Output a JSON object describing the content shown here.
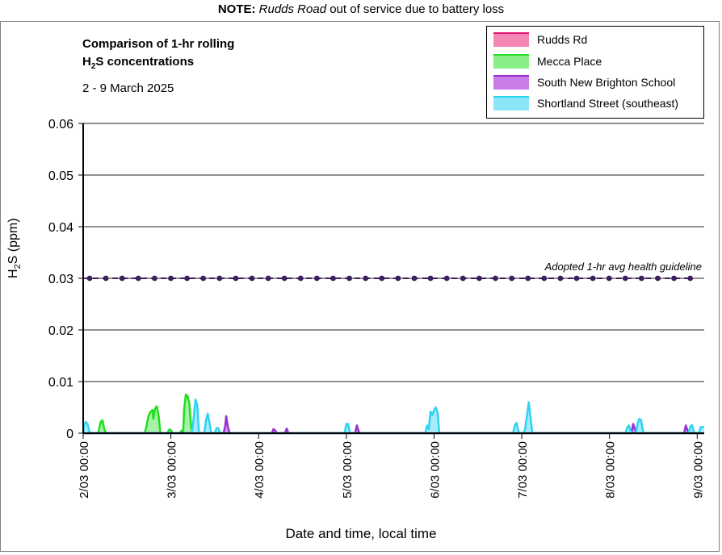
{
  "note": {
    "prefix": "NOTE:",
    "site": "Rudds Road",
    "suffix": "out of service due to battery loss"
  },
  "chart_data": {
    "type": "area",
    "title_line1": "Comparison of 1-hr rolling",
    "title_line2_pre": "H",
    "title_line2_sub": "2",
    "title_line2_post": "S concentrations",
    "subtitle": "2 - 9 March 2025",
    "ylabel_pre": "H",
    "ylabel_sub": "2",
    "ylabel_post": "S (ppm)",
    "xlabel": "Date and time, local time",
    "ylim": [
      0,
      0.06
    ],
    "yticks": [
      "0",
      "0.01",
      "0.02",
      "0.03",
      "0.04",
      "0.05",
      "0.06"
    ],
    "xlim": [
      0,
      7.08
    ],
    "xticks": [
      {
        "value": 0,
        "label": "2/03 00:00"
      },
      {
        "value": 1,
        "label": "3/03 00:00"
      },
      {
        "value": 2,
        "label": "4/03 00:00"
      },
      {
        "value": 3,
        "label": "5/03 00:00"
      },
      {
        "value": 4,
        "label": "6/03 00:00"
      },
      {
        "value": 5,
        "label": "7/03 00:00"
      },
      {
        "value": 6,
        "label": "8/03 00:00"
      },
      {
        "value": 7,
        "label": "9/03 00:00"
      }
    ],
    "x_unit_note": "x values are days since 2/03 00:00",
    "grid": "horizontal",
    "legend_position": "top-right",
    "guideline": {
      "value": 0.03,
      "label": "Adopted 1-hr avg health guideline",
      "color": "#3b1f5e"
    },
    "series": [
      {
        "name": "Rudds Rd",
        "stroke": "#e0156e",
        "fill": "#f487b6",
        "points": [
          [
            0,
            0
          ],
          [
            7.08,
            0
          ]
        ]
      },
      {
        "name": "Mecca Place",
        "stroke": "#22dd22",
        "fill": "#88ef88",
        "points": [
          [
            0,
            0
          ],
          [
            0.17,
            0
          ],
          [
            0.19,
            0.0015
          ],
          [
            0.2,
            0.0022
          ],
          [
            0.22,
            0.0025
          ],
          [
            0.24,
            0.0008
          ],
          [
            0.26,
            0
          ],
          [
            0.7,
            0
          ],
          [
            0.72,
            0.0012
          ],
          [
            0.74,
            0.003
          ],
          [
            0.76,
            0.004
          ],
          [
            0.79,
            0.0045
          ],
          [
            0.8,
            0.0028
          ],
          [
            0.82,
            0.0048
          ],
          [
            0.84,
            0.0052
          ],
          [
            0.86,
            0.0035
          ],
          [
            0.88,
            0
          ],
          [
            0.96,
            0
          ],
          [
            0.98,
            0.0007
          ],
          [
            1.0,
            0.0006
          ],
          [
            1.02,
            0
          ],
          [
            1.1,
            0
          ],
          [
            1.12,
            0.0005
          ],
          [
            1.14,
            0.0002
          ],
          [
            1.15,
            0.0045
          ],
          [
            1.17,
            0.0075
          ],
          [
            1.19,
            0.0072
          ],
          [
            1.21,
            0.0058
          ],
          [
            1.23,
            0.0012
          ],
          [
            1.25,
            0
          ],
          [
            7.08,
            0
          ]
        ]
      },
      {
        "name": "South New Brighton School",
        "stroke": "#9b30d0",
        "fill": "#c77ce8",
        "points": [
          [
            0,
            0
          ],
          [
            1.6,
            0
          ],
          [
            1.62,
            0.0015
          ],
          [
            1.63,
            0.0033
          ],
          [
            1.65,
            0.0012
          ],
          [
            1.67,
            0
          ],
          [
            2.15,
            0
          ],
          [
            2.17,
            0.0008
          ],
          [
            2.19,
            0.0005
          ],
          [
            2.21,
            0
          ],
          [
            2.3,
            0
          ],
          [
            2.32,
            0.0009
          ],
          [
            2.34,
            0
          ],
          [
            3.1,
            0
          ],
          [
            3.12,
            0.0015
          ],
          [
            3.14,
            0.0004
          ],
          [
            3.16,
            0
          ],
          [
            6.25,
            0
          ],
          [
            6.27,
            0.0018
          ],
          [
            6.29,
            0.0008
          ],
          [
            6.31,
            0
          ],
          [
            6.85,
            0
          ],
          [
            6.87,
            0.0015
          ],
          [
            6.89,
            0.0005
          ],
          [
            6.91,
            0
          ],
          [
            7.08,
            0
          ]
        ]
      },
      {
        "name": "Shortland Street (southeast)",
        "stroke": "#2ed3f3",
        "fill": "#8be6f8",
        "points": [
          [
            0,
            0
          ],
          [
            0.01,
            0.0015
          ],
          [
            0.03,
            0.0022
          ],
          [
            0.05,
            0.0018
          ],
          [
            0.07,
            0.0003
          ],
          [
            0.1,
            0
          ],
          [
            1.24,
            0
          ],
          [
            1.26,
            0.003
          ],
          [
            1.28,
            0.0065
          ],
          [
            1.3,
            0.0055
          ],
          [
            1.32,
            0
          ],
          [
            1.38,
            0
          ],
          [
            1.4,
            0.0025
          ],
          [
            1.42,
            0.0038
          ],
          [
            1.44,
            0.002
          ],
          [
            1.46,
            0
          ],
          [
            1.5,
            0
          ],
          [
            1.52,
            0.001
          ],
          [
            1.54,
            0.001
          ],
          [
            1.56,
            0
          ],
          [
            2.98,
            0
          ],
          [
            3.0,
            0.0018
          ],
          [
            3.02,
            0.0018
          ],
          [
            3.04,
            0
          ],
          [
            3.9,
            0
          ],
          [
            3.92,
            0.0015
          ],
          [
            3.94,
            0.0008
          ],
          [
            3.96,
            0.0042
          ],
          [
            3.98,
            0.0035
          ],
          [
            4.0,
            0.0045
          ],
          [
            4.02,
            0.005
          ],
          [
            4.04,
            0.004
          ],
          [
            4.06,
            0
          ],
          [
            4.9,
            0
          ],
          [
            4.92,
            0.0015
          ],
          [
            4.94,
            0.002
          ],
          [
            4.96,
            0.0005
          ],
          [
            4.98,
            0
          ],
          [
            5.02,
            0
          ],
          [
            5.04,
            0.001
          ],
          [
            5.06,
            0.0035
          ],
          [
            5.08,
            0.006
          ],
          [
            5.1,
            0.003
          ],
          [
            5.12,
            0
          ],
          [
            6.18,
            0
          ],
          [
            6.2,
            0.001
          ],
          [
            6.22,
            0.0015
          ],
          [
            6.24,
            0.0005
          ],
          [
            6.26,
            0
          ],
          [
            6.3,
            0
          ],
          [
            6.32,
            0.0018
          ],
          [
            6.34,
            0.0028
          ],
          [
            6.36,
            0.0025
          ],
          [
            6.38,
            0.0005
          ],
          [
            6.4,
            0
          ],
          [
            6.9,
            0
          ],
          [
            6.92,
            0.0012
          ],
          [
            6.94,
            0.0016
          ],
          [
            6.96,
            0.0004
          ],
          [
            6.98,
            0
          ],
          [
            7.02,
            0
          ],
          [
            7.04,
            0.0012
          ],
          [
            7.08,
            0.0012
          ]
        ]
      }
    ]
  }
}
